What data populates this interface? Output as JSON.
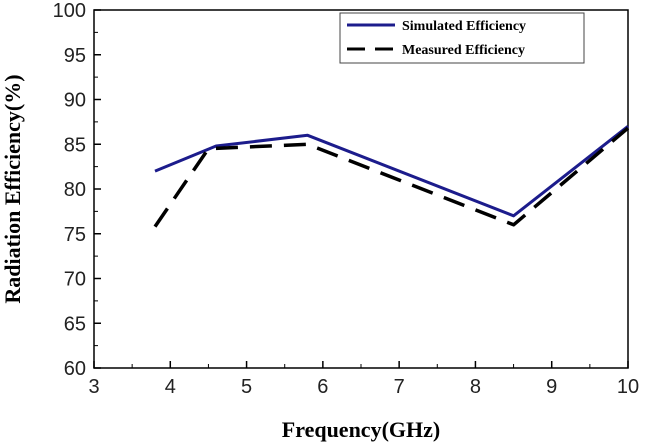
{
  "chart_data": {
    "type": "line",
    "title": "",
    "xlabel": "Frequency(GHz)",
    "ylabel": "Radiation Efficiency(%)",
    "xlim": [
      3,
      10
    ],
    "ylim": [
      60,
      100
    ],
    "xticks": [
      3,
      4,
      5,
      6,
      7,
      8,
      9,
      10
    ],
    "yticks": [
      60,
      65,
      70,
      75,
      80,
      85,
      90,
      95,
      100
    ],
    "grid": false,
    "legend_position": "top-right",
    "series": [
      {
        "name": "Simulated Efficiency",
        "style": "solid",
        "color": "#1c1c8c",
        "x": [
          3.8,
          4.6,
          5.8,
          8.5,
          10
        ],
        "y": [
          82,
          84.8,
          86,
          77,
          87
        ]
      },
      {
        "name": "Measured Efficiency",
        "style": "dashed",
        "color": "#000000",
        "x": [
          3.8,
          4.5,
          5.8,
          8.5,
          10
        ],
        "y": [
          75.8,
          84.5,
          85,
          76,
          86.8
        ]
      }
    ]
  }
}
